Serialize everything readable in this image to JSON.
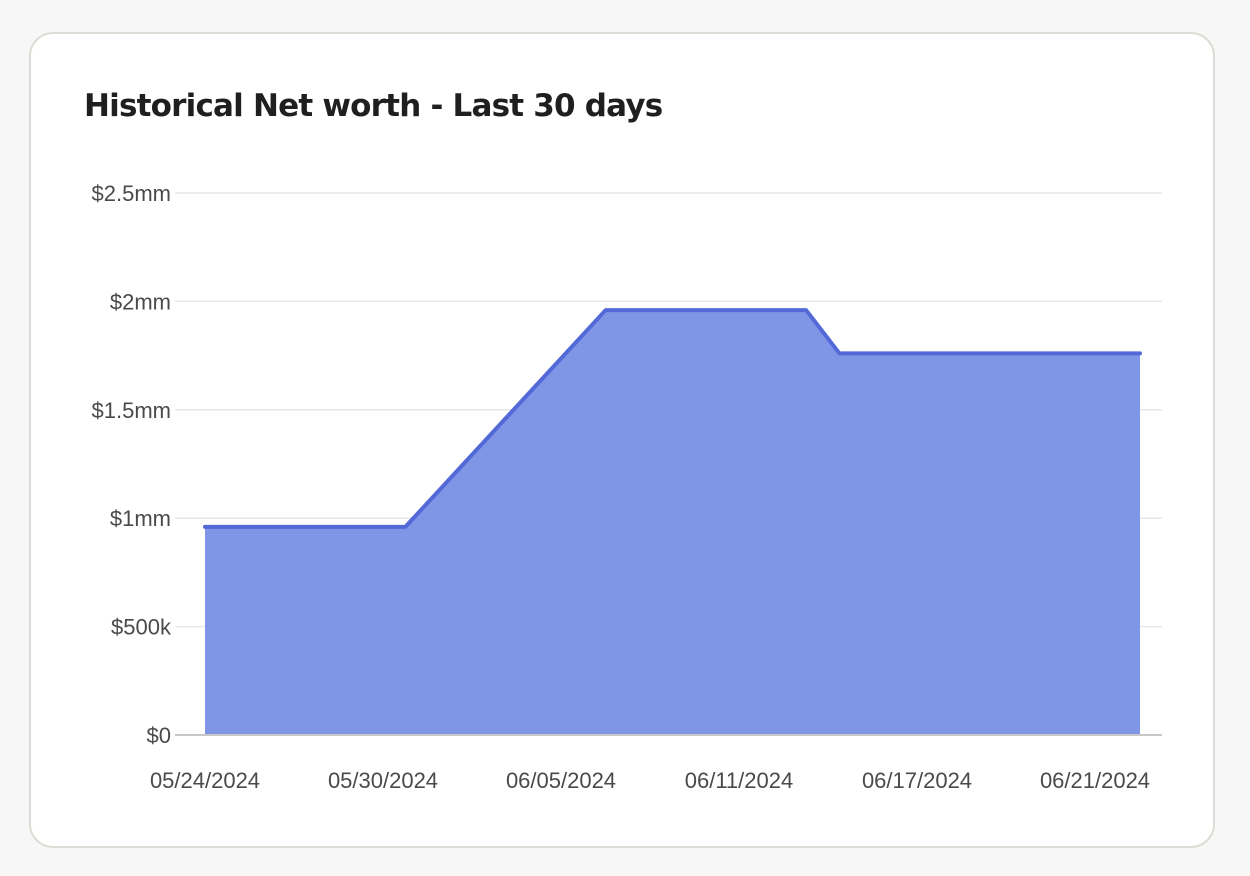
{
  "card": {
    "title": "Historical Net worth - Last 30 days"
  },
  "colors": {
    "area_fill": "#7f95e6",
    "line_stroke": "#5369d8",
    "grid": "#e6e6e6",
    "baseline": "#c8c8c8"
  },
  "chart_data": {
    "type": "area",
    "title": "Historical Net worth - Last 30 days",
    "xlabel": "",
    "ylabel": "",
    "x_tick_labels": [
      "05/24/2024",
      "05/30/2024",
      "06/05/2024",
      "06/11/2024",
      "06/17/2024",
      "06/21/2024"
    ],
    "y_tick_labels": [
      "$0",
      "$500k",
      "$1mm",
      "$1.5mm",
      "$2mm",
      "$2.5mm"
    ],
    "y_tick_values": [
      0,
      500000,
      1000000,
      1500000,
      2000000,
      2500000
    ],
    "ylim": [
      0,
      2500000
    ],
    "xlim": [
      "05/24/2024",
      "06/21/2024"
    ],
    "grid": true,
    "series": [
      {
        "x": [
          "05/24/2024",
          "05/30/2024",
          "06/05/2024",
          "06/06/2024",
          "06/11/2024",
          "06/12/2024",
          "06/17/2024",
          "06/21/2024"
        ],
        "values": [
          960000,
          960000,
          1960000,
          1960000,
          1960000,
          1760000,
          1760000,
          1760000
        ]
      }
    ]
  }
}
